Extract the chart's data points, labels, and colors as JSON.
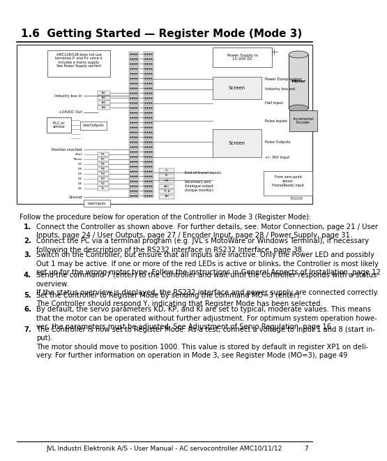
{
  "title": "1.6  Getting Started — Register Mode (Mode 3)",
  "background_color": "#ffffff",
  "title_fontsize": 11.0,
  "body_fontsize": 7.2,
  "footer_text": "JVL Industri Elektronik A/S - User Manual - AC servocontroller AMC10/11/12",
  "footer_page": "7",
  "diagram_border_color": "#555555",
  "diagram_bg": "#f8f8f8",
  "intro_text": "Follow the procedure below for operation of the Controller in Mode 3 (Register Mode):",
  "items": [
    {
      "num": "1.",
      "text": "Connect the Controller as shown above. For further details, see: {i}Motor Connection{/i}, page 21 / {i}User\nInputs{/i}, page 24 / {i}User Outputs{/i}, page 27 / {i}Encoder Input{/i}, page 28 / {i}Power Supply{/i}, page 31."
    },
    {
      "num": "2.",
      "text": "Connect the PC via a terminal program (e.g. JVL’s {i}MotoWare{/i} or Windows {i}Terminal{/i}), if necessary\nfollowing the description of the RS232 interface in {i}RS232 Interface{/i}, page 38."
    },
    {
      "num": "3.",
      "text": "Switch on the Controller, but ensure that all inputs are inactive. Only the {i}Power{/i} LED and possibly\n{i}Out 1{/i} may be active. If one or more of the red LEDs is active or blinks, the Controller is most likely\nset up for the wrong motor type. Follow the instructions in {i}General Aspects of Installation{/i}, page 12"
    },
    {
      "num": "4.",
      "text": "Send the command 7 (enter) to the Controller and wait until the Controller responds with a status\noverview.\nIf the status overview is displayed, the RS232 interface and power supply are connected correctly."
    },
    {
      "num": "5.",
      "text": "Set the Controller to Register Mode by sending the command {i}MO=3{/i} (enter).\nThe Controller should respond {i}Y{/i}, indicating that Register Mode has been selected."
    },
    {
      "num": "6.",
      "text": "By default, the servo parameters KD, KP, and KI are set to typical, moderate values. This means\nthat the motor can be operated without further adjustment. For optimum system operation howe-\nver, the parameters must be adjusted. See {i}Adjustment of Servo Regulation{/i}, page 16."
    },
    {
      "num": "7.",
      "text": "The Controller is now set to Register Mode. As a test, connect a voltage to input 1 and 8 (start in-\nput).\nThe motor should move to position 1000. This value is stored by default in register {i}XP1{/i} on deli-\nvery. For further information on operation in Mode 3, see {i}Register Mode (MO=3){/i}, page 49"
    }
  ]
}
